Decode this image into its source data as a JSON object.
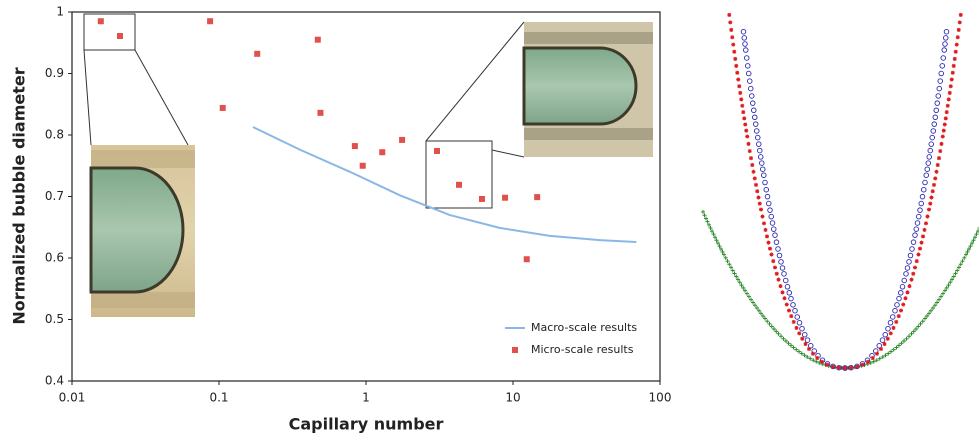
{
  "chart_data": {
    "type": "scatter",
    "x_label": "Capillary number",
    "y_label": "Normalized bubble diameter",
    "x_scale": "log",
    "xlim": [
      0.01,
      100
    ],
    "xticks": [
      0.01,
      0.1,
      1,
      10,
      100
    ],
    "ylim": [
      0.4,
      1
    ],
    "yticks": [
      0.4,
      0.5,
      0.6,
      0.7,
      0.8,
      0.9,
      1
    ],
    "grid": false,
    "legend": "lower right",
    "series": [
      {
        "name": "Macro-scale results",
        "type": "line",
        "color": "#8ab8e6",
        "x": [
          0.17,
          0.356,
          0.78,
          1.7,
          3.7,
          8.1,
          17.8,
          38.9,
          69
        ],
        "values": [
          0.813,
          0.776,
          0.74,
          0.702,
          0.67,
          0.649,
          0.636,
          0.629,
          0.626
        ]
      },
      {
        "name": "Micro-scale results",
        "type": "scatter",
        "color": "#e0504c",
        "x": [
          0.0157,
          0.0212,
          0.087,
          0.106,
          0.182,
          0.47,
          0.49,
          0.84,
          0.95,
          1.29,
          1.76,
          3.04,
          4.29,
          6.15,
          8.83,
          12.4,
          14.6
        ],
        "values": [
          0.985,
          0.961,
          0.985,
          0.844,
          0.932,
          0.955,
          0.836,
          0.782,
          0.75,
          0.772,
          0.792,
          0.774,
          0.719,
          0.696,
          0.698,
          0.598,
          0.699
        ]
      }
    ]
  }
}
